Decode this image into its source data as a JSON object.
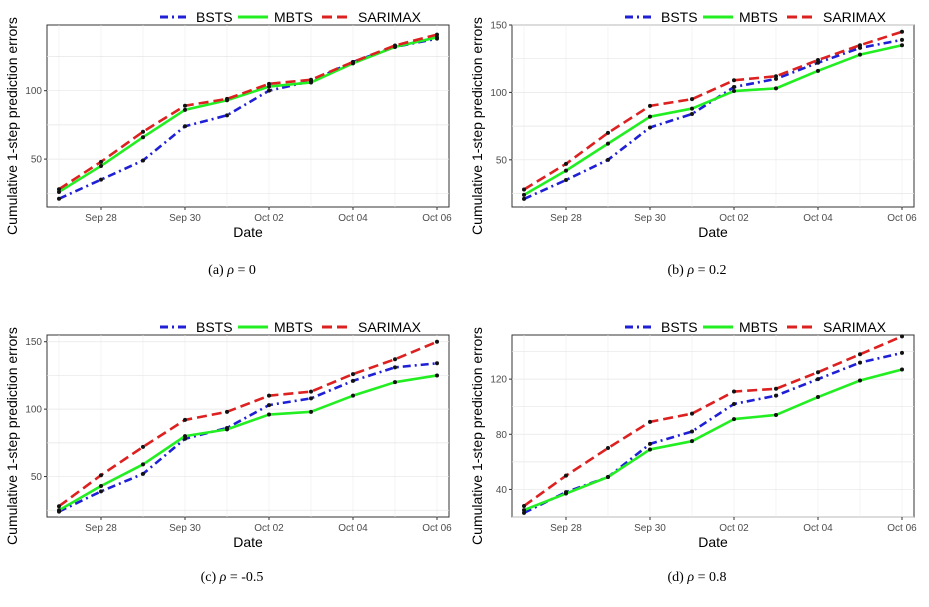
{
  "chart_data": [
    {
      "type": "line",
      "caption": {
        "label": "(a)",
        "symbol": "ρ",
        "value": "= 0"
      },
      "xlabel": "Date",
      "ylabel": "Cumulative 1-step prediction errors",
      "x_dates": [
        "Sep 27",
        "Sep 28",
        "Sep 29",
        "Sep 30",
        "Oct 01",
        "Oct 02",
        "Oct 03",
        "Oct 04",
        "Oct 05",
        "Oct 06"
      ],
      "x_ticks": [
        "Sep 28",
        "Sep 30",
        "Oct 02",
        "Oct 04",
        "Oct 06"
      ],
      "ylim": [
        15,
        148
      ],
      "y_ticks": [
        "50",
        "100"
      ],
      "y_tick_values": [
        50,
        100
      ],
      "legend": [
        "BSTS",
        "MBTS",
        "SARIMAX"
      ],
      "legend_position": "top",
      "grid": true,
      "series": [
        {
          "name": "BSTS",
          "color": "#1f1fd6",
          "values": [
            21,
            35,
            49,
            74,
            82,
            100,
            107,
            121,
            132,
            138
          ]
        },
        {
          "name": "MBTS",
          "color": "#22ee22",
          "values": [
            26,
            45,
            66,
            86,
            93,
            103,
            106,
            120,
            132,
            139
          ]
        },
        {
          "name": "SARIMAX",
          "color": "#dd2020",
          "values": [
            28,
            48,
            70,
            89,
            94,
            105,
            108,
            121,
            133,
            141
          ]
        }
      ]
    },
    {
      "type": "line",
      "caption": {
        "label": "(b)",
        "symbol": "ρ",
        "value": "= 0.2"
      },
      "xlabel": "Date",
      "ylabel": "Cumulative 1-step prediction errors",
      "x_dates": [
        "Sep 27",
        "Sep 28",
        "Sep 29",
        "Sep 30",
        "Oct 01",
        "Oct 02",
        "Oct 03",
        "Oct 04",
        "Oct 05",
        "Oct 06"
      ],
      "x_ticks": [
        "Sep 28",
        "Sep 30",
        "Oct 02",
        "Oct 04",
        "Oct 06"
      ],
      "ylim": [
        15,
        150
      ],
      "y_ticks": [
        "50",
        "100",
        "150"
      ],
      "y_tick_values": [
        50,
        100,
        150
      ],
      "legend": [
        "BSTS",
        "MBTS",
        "SARIMAX"
      ],
      "legend_position": "top",
      "grid": true,
      "series": [
        {
          "name": "BSTS",
          "color": "#1f1fd6",
          "values": [
            21,
            35,
            50,
            74,
            84,
            104,
            110,
            122,
            133,
            139
          ]
        },
        {
          "name": "MBTS",
          "color": "#22ee22",
          "values": [
            24,
            42,
            62,
            82,
            88,
            101,
            103,
            116,
            128,
            135
          ]
        },
        {
          "name": "SARIMAX",
          "color": "#dd2020",
          "values": [
            28,
            47,
            70,
            90,
            95,
            109,
            112,
            124,
            135,
            145
          ]
        }
      ]
    },
    {
      "type": "line",
      "caption": {
        "label": "(c)",
        "symbol": "ρ",
        "value": "= -0.5"
      },
      "xlabel": "Date",
      "ylabel": "Cumulative 1-step prediction errors",
      "x_dates": [
        "Sep 27",
        "Sep 28",
        "Sep 29",
        "Sep 30",
        "Oct 01",
        "Oct 02",
        "Oct 03",
        "Oct 04",
        "Oct 05",
        "Oct 06"
      ],
      "x_ticks": [
        "Sep 28",
        "Sep 30",
        "Oct 02",
        "Oct 04",
        "Oct 06"
      ],
      "ylim": [
        20,
        155
      ],
      "y_ticks": [
        "50",
        "100",
        "150"
      ],
      "y_tick_values": [
        50,
        100,
        150
      ],
      "legend": [
        "BSTS",
        "MBTS",
        "SARIMAX"
      ],
      "legend_position": "top",
      "grid": true,
      "series": [
        {
          "name": "BSTS",
          "color": "#1f1fd6",
          "values": [
            24,
            39,
            52,
            78,
            86,
            103,
            108,
            121,
            131,
            134
          ]
        },
        {
          "name": "MBTS",
          "color": "#22ee22",
          "values": [
            25,
            43,
            59,
            80,
            85,
            96,
            98,
            110,
            120,
            125
          ]
        },
        {
          "name": "SARIMAX",
          "color": "#dd2020",
          "values": [
            28,
            51,
            72,
            92,
            98,
            110,
            113,
            126,
            137,
            150
          ]
        }
      ]
    },
    {
      "type": "line",
      "caption": {
        "label": "(d)",
        "symbol": "ρ",
        "value": "= 0.8"
      },
      "xlabel": "Date",
      "ylabel": "Cumulative 1-step prediction errors",
      "x_dates": [
        "Sep 27",
        "Sep 28",
        "Sep 29",
        "Sep 30",
        "Oct 01",
        "Oct 02",
        "Oct 03",
        "Oct 04",
        "Oct 05",
        "Oct 06"
      ],
      "x_ticks": [
        "Sep 28",
        "Sep 30",
        "Oct 02",
        "Oct 04",
        "Oct 06"
      ],
      "ylim": [
        20,
        152
      ],
      "y_ticks": [
        "40",
        "80",
        "120"
      ],
      "y_tick_values": [
        40,
        80,
        120
      ],
      "legend": [
        "BSTS",
        "MBTS",
        "SARIMAX"
      ],
      "legend_position": "top",
      "grid": true,
      "series": [
        {
          "name": "BSTS",
          "color": "#1f1fd6",
          "values": [
            23,
            38,
            49,
            73,
            82,
            102,
            108,
            120,
            132,
            139
          ]
        },
        {
          "name": "MBTS",
          "color": "#22ee22",
          "values": [
            25,
            37,
            49,
            69,
            75,
            91,
            94,
            107,
            119,
            127
          ]
        },
        {
          "name": "SARIMAX",
          "color": "#dd2020",
          "values": [
            28,
            50,
            70,
            89,
            95,
            111,
            113,
            125,
            138,
            151
          ]
        }
      ]
    }
  ]
}
